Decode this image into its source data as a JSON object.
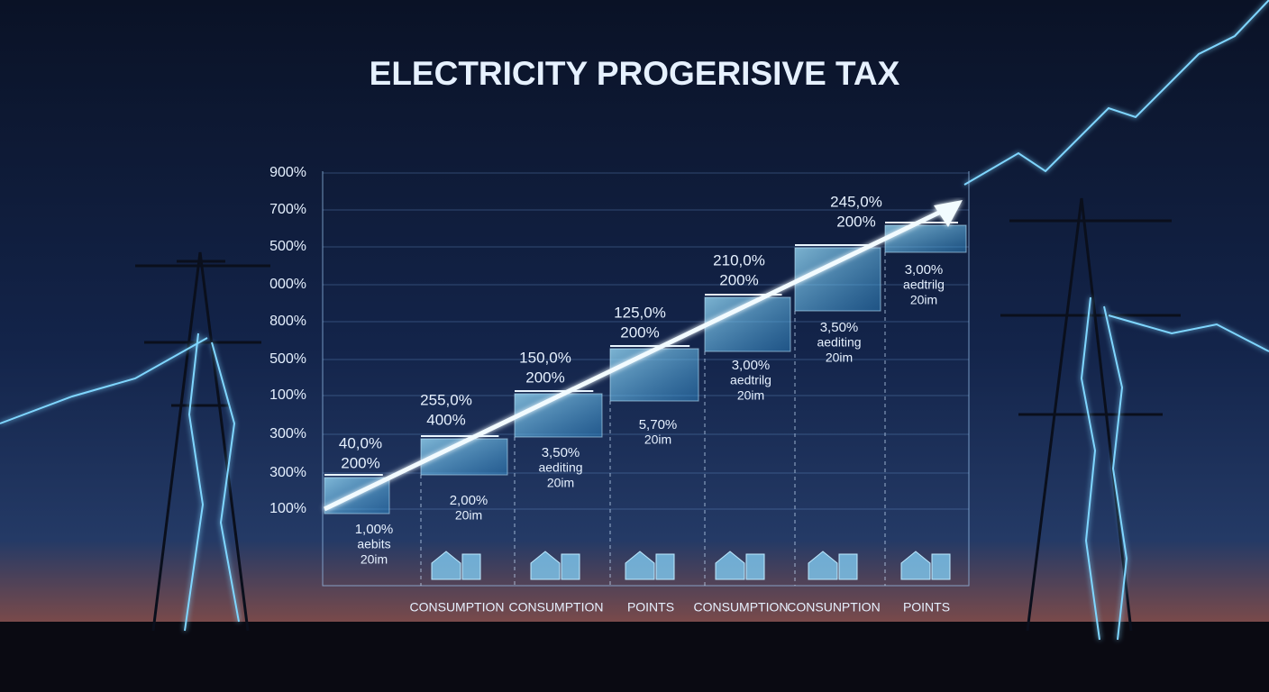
{
  "title": "ELECTRICITY PROGERISIVE TAX",
  "axis_labels": [
    "900%",
    "700%",
    "500%",
    "000%",
    "800%",
    "500%",
    "100%",
    "300%",
    "300%",
    "100%"
  ],
  "steps": [
    {
      "top": [
        "40,0%",
        "200%"
      ],
      "bottom": [
        "1,00%",
        "aebits",
        "20im"
      ]
    },
    {
      "top": [
        "255,0%",
        "400%"
      ],
      "bottom": [
        "2,00%",
        "20im"
      ]
    },
    {
      "top": [
        "150,0%",
        "200%"
      ],
      "bottom": [
        "3,50%",
        "aediting",
        "20im"
      ]
    },
    {
      "top": [
        "125,0%",
        "200%"
      ],
      "bottom": [
        "5,70%",
        "20im"
      ]
    },
    {
      "top": [
        "210,0%",
        "200%"
      ],
      "bottom": [
        "3,00%",
        "aedtrilg",
        "20im"
      ]
    },
    {
      "top": [
        "245,0%",
        "200%"
      ],
      "bottom": [
        "3,50%",
        "aediting",
        "20im"
      ]
    },
    {
      "top": [],
      "bottom": [
        "3,00%",
        "aedtrilg",
        "20im"
      ]
    }
  ],
  "categories": [
    "CONSUMPTION",
    "CONSUMPTION",
    "POINTS",
    "CONSUMPTION",
    "CONSUNPTION",
    "POINTS"
  ]
}
